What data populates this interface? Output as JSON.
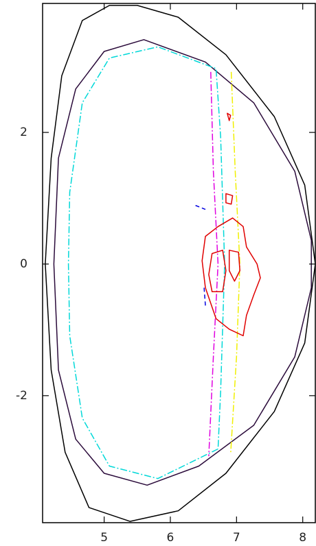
{
  "chart_data": {
    "type": "contour",
    "xlim": [
      4.07,
      8.19
    ],
    "ylim": [
      -3.93,
      3.96
    ],
    "xticks": [
      5,
      6,
      7,
      8
    ],
    "yticks": [
      -2,
      0,
      2
    ],
    "series": [
      {
        "color": "#000000",
        "dash": "solid",
        "closed": true,
        "x": [
          4.67,
          5.08,
          5.5,
          6.12,
          6.84,
          7.57,
          8.03,
          8.19,
          8.03,
          7.57,
          6.84,
          6.12,
          5.39,
          4.77,
          4.41,
          4.2,
          4.11,
          4.2,
          4.36
        ],
        "y": [
          3.7,
          3.93,
          3.93,
          3.75,
          3.18,
          2.24,
          1.2,
          0,
          -1.2,
          -2.24,
          -3.18,
          -3.75,
          -3.91,
          -3.7,
          -2.86,
          -1.61,
          0,
          1.61,
          2.86
        ]
      },
      {
        "color": "#2a0a3a",
        "dash": "solid",
        "closed": true,
        "x": [
          5.6,
          5.0,
          4.57,
          4.31,
          4.24,
          4.31,
          4.57,
          5.0,
          5.65,
          6.43,
          7.26,
          7.88,
          8.13,
          8.13,
          7.88,
          7.26,
          6.53
        ],
        "y": [
          3.41,
          3.23,
          2.66,
          1.61,
          0,
          -1.61,
          -2.66,
          -3.18,
          -3.36,
          -3.07,
          -2.45,
          -1.41,
          -0.36,
          0.36,
          1.41,
          2.45,
          3.07
        ]
      },
      {
        "color": "#00d8d8",
        "dash": "dashdot",
        "closed": false,
        "x": [
          6.72,
          5.81,
          5.08,
          4.67,
          4.48,
          4.46,
          4.48,
          4.67,
          5.08,
          5.81,
          6.69,
          6.76,
          6.82,
          6.76,
          6.72
        ],
        "y": [
          -2.81,
          -3.26,
          -3.07,
          -2.34,
          -1.09,
          0,
          1.09,
          2.45,
          3.13,
          3.3,
          2.97,
          1.93,
          0,
          -1.93,
          -2.81
        ]
      },
      {
        "color": "#e000e0",
        "dash": "dashdot",
        "closed": false,
        "x": [
          6.61,
          6.65,
          6.72,
          6.65,
          6.58
        ],
        "y": [
          2.92,
          1.41,
          0,
          -1.41,
          -2.92
        ]
      },
      {
        "color": "#f0f000",
        "dash": "dashdot",
        "closed": false,
        "x": [
          6.92,
          6.98,
          7.05,
          7.0,
          6.91
        ],
        "y": [
          2.92,
          1.41,
          0,
          -1.41,
          -2.89
        ]
      },
      {
        "color": "#e00000",
        "dash": "solid",
        "closed": true,
        "x": [
          6.72,
          6.94,
          7.1,
          7.15,
          7.31,
          7.36,
          7.26,
          7.15,
          7.1,
          6.89,
          6.69,
          6.53,
          6.48,
          6.53
        ],
        "y": [
          0.57,
          0.7,
          0.57,
          0.26,
          0,
          -0.21,
          -0.47,
          -0.78,
          -1.09,
          -0.99,
          -0.83,
          -0.36,
          0.05,
          0.42
        ]
      },
      {
        "color": "#e00000",
        "dash": "solid",
        "closed": true,
        "x": [
          6.63,
          6.79,
          6.84,
          6.79,
          6.63,
          6.58
        ],
        "y": [
          0.16,
          0.21,
          -0.1,
          -0.42,
          -0.42,
          -0.16
        ]
      },
      {
        "color": "#e00000",
        "dash": "solid",
        "closed": true,
        "x": [
          6.89,
          7.03,
          7.05,
          6.97,
          6.89
        ],
        "y": [
          0.21,
          0.18,
          -0.1,
          -0.26,
          -0.1
        ]
      },
      {
        "color": "#e00000",
        "dash": "solid",
        "closed": true,
        "x": [
          6.84,
          6.94,
          6.92,
          6.84
        ],
        "y": [
          1.07,
          1.04,
          0.91,
          0.93
        ]
      },
      {
        "color": "#e00000",
        "dash": "solid",
        "closed": true,
        "x": [
          6.86,
          6.91,
          6.89
        ],
        "y": [
          2.29,
          2.26,
          2.18
        ]
      },
      {
        "color": "#0000e0",
        "dash": "dashed",
        "closed": false,
        "x": [
          6.38,
          6.53
        ],
        "y": [
          0.89,
          0.83
        ]
      },
      {
        "color": "#0000e0",
        "dash": "dashed",
        "closed": false,
        "x": [
          6.51,
          6.53
        ],
        "y": [
          -0.36,
          -0.63
        ]
      }
    ]
  }
}
